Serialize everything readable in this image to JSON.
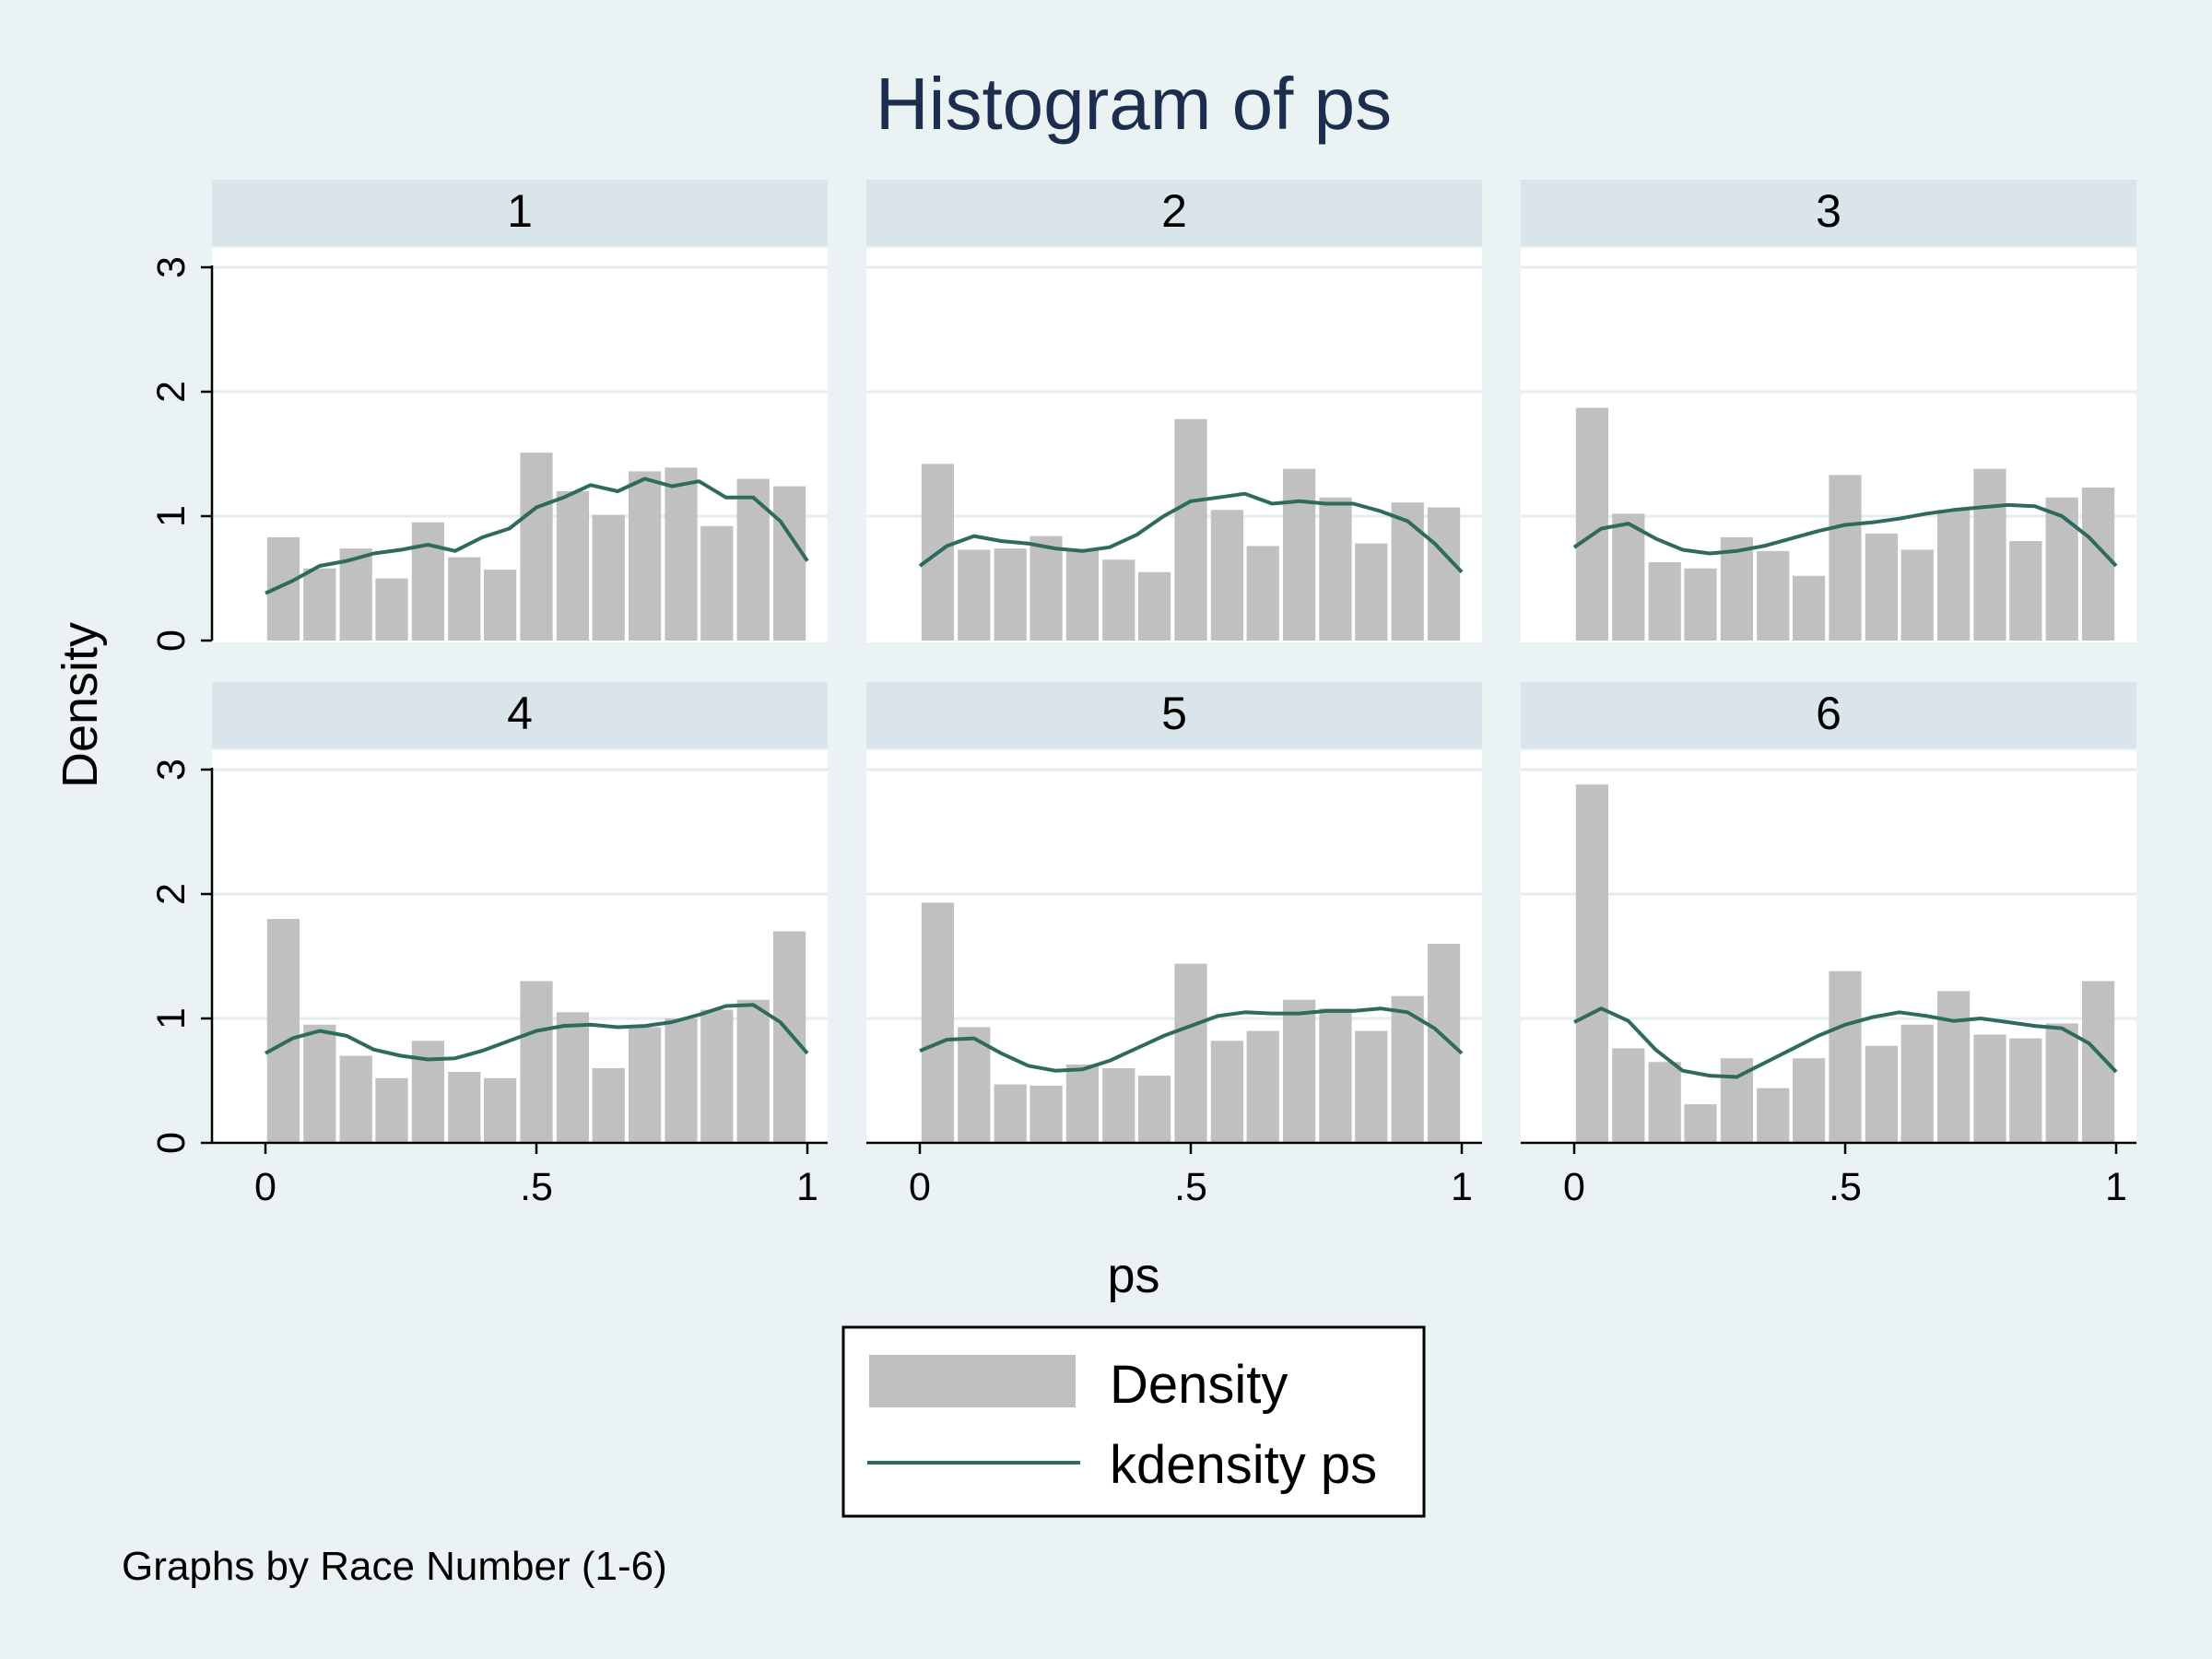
{
  "chart_data": {
    "type": "bar",
    "title": "Histogram of ps",
    "xlabel": "ps",
    "ylabel": "Density",
    "note": "Graphs by Race Number (1-6)",
    "xlim": [
      0,
      1
    ],
    "ylim": [
      0,
      3
    ],
    "x_ticks": [
      "0",
      ".5",
      "1"
    ],
    "y_ticks": [
      "0",
      "1",
      "2",
      "3"
    ],
    "bin_width": 0.0667,
    "bin_centers": [
      0.033,
      0.1,
      0.167,
      0.233,
      0.3,
      0.367,
      0.433,
      0.5,
      0.567,
      0.633,
      0.7,
      0.767,
      0.833,
      0.9,
      0.967
    ],
    "legend": {
      "position": "bottom",
      "items": [
        "Density",
        "kdensity ps"
      ]
    },
    "colors": {
      "bars": "#c0c0c0",
      "kdensity": "#2e6a5e",
      "plot_bg": "#ffffff",
      "strip_bg": "#d9e5ea",
      "title": "#1c2d4f"
    },
    "panels": [
      {
        "label": "1",
        "density": [
          0.83,
          0.58,
          0.74,
          0.5,
          0.95,
          0.67,
          0.57,
          1.51,
          1.2,
          1.01,
          1.36,
          1.39,
          0.92,
          1.3,
          1.24
        ],
        "kdensity": {
          "x": [
            0,
            0.05,
            0.1,
            0.15,
            0.2,
            0.25,
            0.3,
            0.35,
            0.4,
            0.45,
            0.5,
            0.55,
            0.6,
            0.65,
            0.7,
            0.75,
            0.8,
            0.85,
            0.9,
            0.95,
            1
          ],
          "y": [
            0.38,
            0.48,
            0.6,
            0.64,
            0.7,
            0.73,
            0.77,
            0.72,
            0.83,
            0.9,
            1.07,
            1.15,
            1.25,
            1.2,
            1.3,
            1.24,
            1.28,
            1.15,
            1.15,
            0.96,
            0.64
          ]
        }
      },
      {
        "label": "2",
        "density": [
          1.42,
          0.73,
          0.74,
          0.84,
          0.73,
          0.65,
          0.55,
          1.78,
          1.05,
          0.76,
          1.38,
          1.15,
          0.78,
          1.11,
          1.07
        ],
        "kdensity": {
          "x": [
            0,
            0.05,
            0.1,
            0.15,
            0.2,
            0.25,
            0.3,
            0.35,
            0.4,
            0.45,
            0.5,
            0.55,
            0.6,
            0.65,
            0.7,
            0.75,
            0.8,
            0.85,
            0.9,
            0.95,
            1
          ],
          "y": [
            0.6,
            0.76,
            0.84,
            0.8,
            0.78,
            0.74,
            0.72,
            0.75,
            0.85,
            1.0,
            1.12,
            1.15,
            1.18,
            1.1,
            1.12,
            1.1,
            1.1,
            1.04,
            0.96,
            0.78,
            0.55
          ]
        }
      },
      {
        "label": "3",
        "density": [
          1.87,
          1.02,
          0.63,
          0.58,
          0.83,
          0.72,
          0.52,
          1.33,
          0.86,
          0.73,
          1.05,
          1.38,
          0.8,
          1.15,
          1.23
        ],
        "kdensity": {
          "x": [
            0,
            0.05,
            0.1,
            0.15,
            0.2,
            0.25,
            0.3,
            0.35,
            0.4,
            0.45,
            0.5,
            0.55,
            0.6,
            0.65,
            0.7,
            0.75,
            0.8,
            0.85,
            0.9,
            0.95,
            1
          ],
          "y": [
            0.75,
            0.9,
            0.94,
            0.82,
            0.73,
            0.7,
            0.72,
            0.76,
            0.82,
            0.88,
            0.93,
            0.95,
            0.98,
            1.02,
            1.05,
            1.07,
            1.09,
            1.08,
            1.0,
            0.83,
            0.6
          ]
        }
      },
      {
        "label": "4",
        "density": [
          1.8,
          0.95,
          0.7,
          0.52,
          0.82,
          0.57,
          0.52,
          1.3,
          1.05,
          0.6,
          0.93,
          1.0,
          1.07,
          1.15,
          1.7
        ],
        "kdensity": {
          "x": [
            0,
            0.05,
            0.1,
            0.15,
            0.2,
            0.25,
            0.3,
            0.35,
            0.4,
            0.45,
            0.5,
            0.55,
            0.6,
            0.65,
            0.7,
            0.75,
            0.8,
            0.85,
            0.9,
            0.95,
            1
          ],
          "y": [
            0.72,
            0.84,
            0.9,
            0.86,
            0.75,
            0.7,
            0.67,
            0.68,
            0.74,
            0.82,
            0.9,
            0.94,
            0.95,
            0.93,
            0.94,
            0.97,
            1.03,
            1.1,
            1.11,
            0.97,
            0.72
          ]
        }
      },
      {
        "label": "5",
        "density": [
          1.93,
          0.93,
          0.47,
          0.46,
          0.63,
          0.6,
          0.54,
          1.44,
          0.82,
          0.9,
          1.15,
          1.08,
          0.9,
          1.18,
          1.6
        ],
        "kdensity": {
          "x": [
            0,
            0.05,
            0.1,
            0.15,
            0.2,
            0.25,
            0.3,
            0.35,
            0.4,
            0.45,
            0.5,
            0.55,
            0.6,
            0.65,
            0.7,
            0.75,
            0.8,
            0.85,
            0.9,
            0.95,
            1
          ],
          "y": [
            0.74,
            0.83,
            0.84,
            0.72,
            0.62,
            0.58,
            0.59,
            0.66,
            0.76,
            0.86,
            0.94,
            1.02,
            1.05,
            1.04,
            1.04,
            1.06,
            1.06,
            1.08,
            1.05,
            0.92,
            0.72
          ]
        }
      },
      {
        "label": "6",
        "density": [
          2.88,
          0.76,
          0.65,
          0.31,
          0.68,
          0.44,
          0.68,
          1.38,
          0.78,
          0.95,
          1.22,
          0.87,
          0.84,
          0.96,
          1.3
        ],
        "kdensity": {
          "x": [
            0,
            0.05,
            0.1,
            0.15,
            0.2,
            0.25,
            0.3,
            0.35,
            0.4,
            0.45,
            0.5,
            0.55,
            0.6,
            0.65,
            0.7,
            0.75,
            0.8,
            0.85,
            0.9,
            0.95,
            1
          ],
          "y": [
            0.97,
            1.08,
            0.98,
            0.75,
            0.58,
            0.54,
            0.53,
            0.64,
            0.75,
            0.86,
            0.95,
            1.01,
            1.05,
            1.02,
            0.98,
            1.0,
            0.97,
            0.94,
            0.92,
            0.8,
            0.57
          ]
        }
      }
    ]
  }
}
